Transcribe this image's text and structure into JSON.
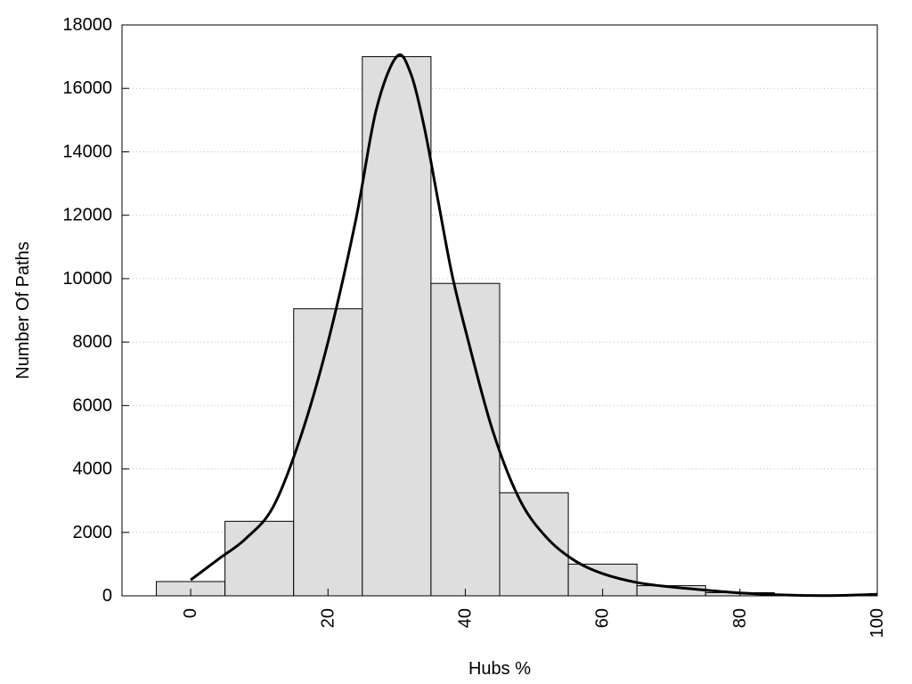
{
  "chart_data": {
    "type": "bar",
    "subtype": "histogram",
    "title": "",
    "xlabel": "Hubs %",
    "ylabel": "Number Of Paths",
    "xlim": [
      -10,
      100
    ],
    "ylim": [
      0,
      18000
    ],
    "x_ticks": [
      0,
      20,
      40,
      60,
      80,
      100
    ],
    "y_ticks": [
      0,
      2000,
      4000,
      6000,
      8000,
      10000,
      12000,
      14000,
      16000,
      18000
    ],
    "bin_width": 10,
    "bins": [
      {
        "center": 0,
        "value": 450
      },
      {
        "center": 10,
        "value": 2350
      },
      {
        "center": 20,
        "value": 9050
      },
      {
        "center": 30,
        "value": 17000
      },
      {
        "center": 40,
        "value": 9850
      },
      {
        "center": 50,
        "value": 3250
      },
      {
        "center": 60,
        "value": 1000
      },
      {
        "center": 70,
        "value": 320
      },
      {
        "center": 80,
        "value": 100
      },
      {
        "center": 90,
        "value": 20
      },
      {
        "center": 100,
        "value": 5
      }
    ],
    "curve": {
      "x": [
        0,
        4,
        8,
        12,
        16,
        20,
        24,
        27,
        30,
        32,
        34,
        36,
        38,
        40,
        44,
        48,
        52,
        56,
        60,
        65,
        70,
        75,
        80,
        85,
        90,
        95,
        100
      ],
      "y": [
        500,
        1150,
        1800,
        2800,
        5000,
        8000,
        11800,
        15300,
        17000,
        16500,
        14800,
        12500,
        10200,
        8400,
        5200,
        3000,
        1800,
        1100,
        700,
        420,
        280,
        180,
        90,
        40,
        10,
        15,
        50
      ]
    },
    "grid": {
      "horizontal": true,
      "style": "dotted"
    },
    "colors": {
      "bar_fill": "#dedede",
      "bar_stroke": "#000000",
      "curve": "#000000"
    }
  }
}
